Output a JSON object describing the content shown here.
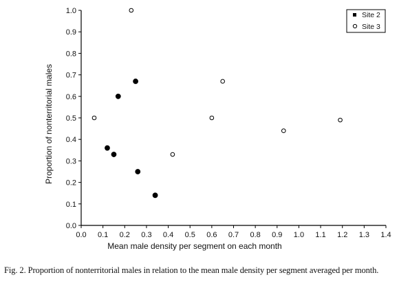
{
  "chart_data": {
    "type": "scatter",
    "title": "",
    "xlabel": "Mean male density per segment on each month",
    "ylabel": "Proportion of nonterritorial males",
    "xlim": [
      0.0,
      1.4
    ],
    "ylim": [
      0.0,
      1.0
    ],
    "xticks": [
      "0.0",
      "0.1",
      "0.2",
      "0.3",
      "0.4",
      "0.5",
      "0.6",
      "0.7",
      "0.8",
      "0.9",
      "1.0",
      "1.1",
      "1.2",
      "1.3",
      "1.4"
    ],
    "yticks": [
      "0.0",
      "0.1",
      "0.2",
      "0.3",
      "0.4",
      "0.5",
      "0.6",
      "0.7",
      "0.8",
      "0.9",
      "1.0"
    ],
    "grid": false,
    "legend_position": "top-right",
    "series": [
      {
        "name": "Site 2",
        "marker": "filled-circle",
        "color": "#000000",
        "points": [
          {
            "x": 0.12,
            "y": 0.36
          },
          {
            "x": 0.15,
            "y": 0.33
          },
          {
            "x": 0.17,
            "y": 0.6
          },
          {
            "x": 0.25,
            "y": 0.67
          },
          {
            "x": 0.26,
            "y": 0.25
          },
          {
            "x": 0.34,
            "y": 0.14
          }
        ]
      },
      {
        "name": "Site 3",
        "marker": "open-circle",
        "color": "#000000",
        "points": [
          {
            "x": 0.06,
            "y": 0.5
          },
          {
            "x": 0.23,
            "y": 1.0
          },
          {
            "x": 0.42,
            "y": 0.33
          },
          {
            "x": 0.6,
            "y": 0.5
          },
          {
            "x": 0.65,
            "y": 0.67
          },
          {
            "x": 0.93,
            "y": 0.44
          },
          {
            "x": 1.19,
            "y": 0.49
          }
        ]
      }
    ]
  },
  "caption": "Fig. 2. Proportion of nonterritorial males in relation to the mean male density per segment averaged per month."
}
